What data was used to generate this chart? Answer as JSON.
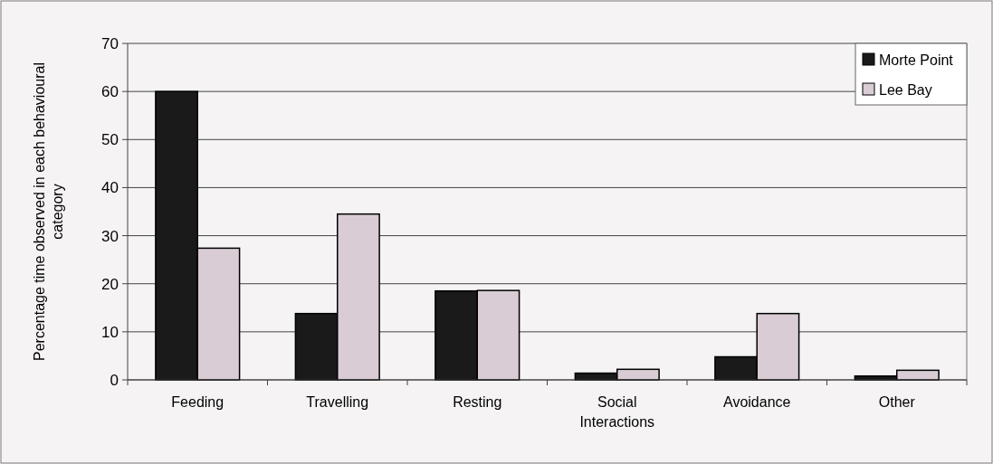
{
  "chart_data": {
    "type": "bar",
    "ylabel": "Percentage time observed in each behavioural category",
    "categories": [
      "Feeding",
      "Travelling",
      "Resting",
      "Social Interactions",
      "Avoidance",
      "Other"
    ],
    "series": [
      {
        "name": "Morte Point",
        "color": "#1a1a1a",
        "values": [
          60,
          13.8,
          18.5,
          1.4,
          4.8,
          0.8
        ]
      },
      {
        "name": "Lee Bay",
        "color": "#d9ccd4",
        "values": [
          27.4,
          34.5,
          18.6,
          2.2,
          13.8,
          2.0
        ]
      }
    ],
    "ylim": [
      0,
      70
    ],
    "yticks": [
      0,
      10,
      20,
      30,
      40,
      50,
      60,
      70
    ],
    "grid": "y",
    "legend": "top right"
  }
}
